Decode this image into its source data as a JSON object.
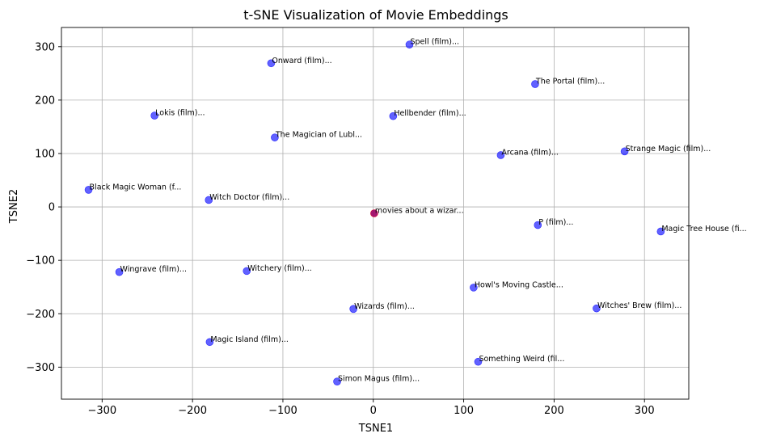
{
  "chart_data": {
    "type": "scatter",
    "title": "t-SNE Visualization of Movie Embeddings",
    "xlabel": "TSNE1",
    "ylabel": "TSNE2",
    "xlim": [
      -345,
      349
    ],
    "ylim": [
      -360,
      336
    ],
    "xticks": [
      -300,
      -200,
      -100,
      0,
      100,
      200,
      300
    ],
    "xtick_labels": [
      "−300",
      "−200",
      "−100",
      "0",
      "100",
      "200",
      "300"
    ],
    "yticks": [
      300,
      200,
      100,
      0,
      -100,
      -200,
      -300
    ],
    "ytick_labels": [
      "300",
      "200",
      "100",
      "0",
      "−100",
      "−200",
      "−300"
    ],
    "grid": true,
    "colors": {
      "movie": "#0000ff",
      "query": "#ff0000"
    },
    "points": [
      {
        "x": 40,
        "y": 304,
        "label": "Spell (film)..."
      },
      {
        "x": -113,
        "y": 269,
        "label": "Onward (film)..."
      },
      {
        "x": 179,
        "y": 230,
        "label": "The Portal (film)..."
      },
      {
        "x": -242,
        "y": 171,
        "label": "Lokis (film)..."
      },
      {
        "x": 22,
        "y": 170,
        "label": "Hellbender (film)..."
      },
      {
        "x": -109,
        "y": 130,
        "label": "The Magician of Lubl..."
      },
      {
        "x": 141,
        "y": 97,
        "label": "Arcana (film)..."
      },
      {
        "x": 278,
        "y": 104,
        "label": "Strange Magic (film)..."
      },
      {
        "x": -315,
        "y": 32,
        "label": "Black Magic Woman (f..."
      },
      {
        "x": -182,
        "y": 13,
        "label": "Witch Doctor (film)..."
      },
      {
        "x": 182,
        "y": -34,
        "label": "P (film)..."
      },
      {
        "x": 318,
        "y": -46,
        "label": "Magic Tree House (fi..."
      },
      {
        "x": -281,
        "y": -122,
        "label": "Wingrave (film)..."
      },
      {
        "x": -140,
        "y": -120,
        "label": "Witchery (film)..."
      },
      {
        "x": 111,
        "y": -151,
        "label": "Howl's Moving Castle..."
      },
      {
        "x": 247,
        "y": -190,
        "label": "Witches' Brew (film)..."
      },
      {
        "x": -22,
        "y": -191,
        "label": "Wizards (film)..."
      },
      {
        "x": -181,
        "y": -253,
        "label": "Magic Island (film)..."
      },
      {
        "x": 116,
        "y": -290,
        "label": "Something Weird (fil..."
      },
      {
        "x": -40,
        "y": -327,
        "label": "Simon Magus (film)..."
      }
    ],
    "query_point": {
      "x": 1,
      "y": -12,
      "label": "movies about a wizar..."
    }
  }
}
